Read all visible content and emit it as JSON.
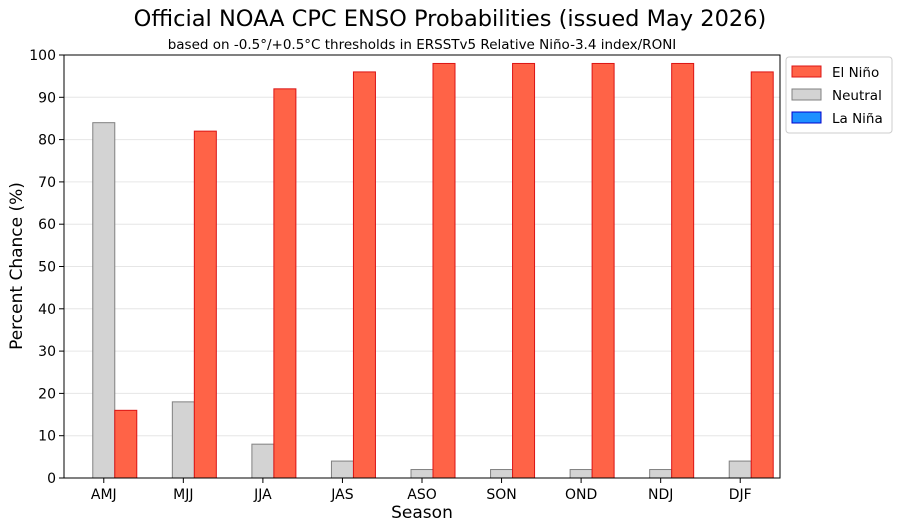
{
  "chart_data": {
    "type": "bar",
    "title": "Official NOAA CPC ENSO Probabilities (issued May 2026)",
    "subtitle": "based on -0.5°/+0.5°C thresholds in ERSSTv5 Relative Niño-3.4 index/RONI",
    "xlabel": "Season",
    "ylabel": "Percent Chance (%)",
    "ylim": [
      0,
      100
    ],
    "yticks": [
      0,
      10,
      20,
      30,
      40,
      50,
      60,
      70,
      80,
      90,
      100
    ],
    "grid": "horizontal",
    "legend_position": "top-right",
    "categories": [
      "AMJ",
      "MJJ",
      "JJA",
      "JAS",
      "ASO",
      "SON",
      "OND",
      "NDJ",
      "DJF"
    ],
    "series": [
      {
        "name": "La Niña",
        "color": "#1e90ff",
        "edge": "#0000cd",
        "values": [
          0,
          0,
          0,
          0,
          0,
          0,
          0,
          0,
          0
        ]
      },
      {
        "name": "Neutral",
        "color": "#d3d3d3",
        "edge": "#808080",
        "values": [
          84,
          18,
          8,
          4,
          2,
          2,
          2,
          2,
          4
        ]
      },
      {
        "name": "El Niño",
        "color": "#ff6347",
        "edge": "#dc1414",
        "values": [
          16,
          82,
          92,
          96,
          98,
          98,
          98,
          98,
          96
        ]
      }
    ],
    "legend_order": [
      "El Niño",
      "Neutral",
      "La Niña"
    ]
  }
}
